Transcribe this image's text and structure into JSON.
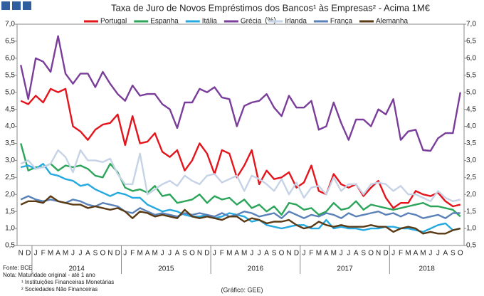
{
  "chart_data": {
    "type": "line",
    "title": "Taxa de Juro de Novos Empréstimos dos Bancos¹ às Empresas² - Acima 1M€",
    "unit": "(%)",
    "categories": [
      "N",
      "D",
      "J",
      "F",
      "M",
      "A",
      "M",
      "J",
      "J",
      "A",
      "S",
      "O",
      "N",
      "D",
      "J",
      "F",
      "M",
      "A",
      "M",
      "J",
      "J",
      "A",
      "S",
      "O",
      "N",
      "D",
      "J",
      "F",
      "M",
      "A",
      "M",
      "J",
      "J",
      "A",
      "S",
      "O",
      "N",
      "D",
      "J",
      "F",
      "M",
      "A",
      "M",
      "J",
      "J",
      "A",
      "S",
      "O",
      "N",
      "D",
      "J",
      "F",
      "M",
      "A",
      "M",
      "J",
      "J",
      "A",
      "S",
      "O"
    ],
    "years": [
      "2014",
      "2015",
      "2016",
      "2017",
      "2018"
    ],
    "ylim": [
      0.5,
      7.0
    ],
    "yticks": [
      {
        "value": 0.5,
        "label": "0,5"
      },
      {
        "value": 1.0,
        "label": "1,0"
      },
      {
        "value": 1.5,
        "label": "1,5"
      },
      {
        "value": 2.0,
        "label": "2,0"
      },
      {
        "value": 2.5,
        "label": "2,5"
      },
      {
        "value": 3.0,
        "label": "3,0"
      },
      {
        "value": 3.5,
        "label": "3,5"
      },
      {
        "value": 4.0,
        "label": "4,0"
      },
      {
        "value": 4.5,
        "label": "4,5"
      },
      {
        "value": 5.0,
        "label": "5,0"
      },
      {
        "value": 5.5,
        "label": "5,5"
      },
      {
        "value": 6.0,
        "label": "6,0"
      },
      {
        "value": 6.5,
        "label": "6,5"
      },
      {
        "value": 7.0,
        "label": "7,0"
      }
    ],
    "series": [
      {
        "name": "Portugal",
        "color": "#e3141b",
        "values": [
          4.75,
          4.65,
          4.9,
          4.7,
          5.1,
          5.0,
          5.1,
          4.0,
          3.85,
          3.6,
          3.9,
          4.05,
          4.1,
          4.35,
          3.45,
          4.3,
          3.5,
          3.55,
          3.8,
          3.25,
          3.1,
          3.3,
          2.7,
          3.0,
          3.5,
          3.2,
          2.6,
          3.3,
          3.2,
          2.5,
          2.85,
          3.3,
          2.3,
          2.7,
          2.45,
          2.5,
          2.65,
          2.2,
          2.35,
          2.85,
          2.1,
          2.0,
          2.6,
          2.3,
          2.2,
          2.3,
          1.95,
          2.2,
          2.4,
          1.9,
          1.6,
          1.75,
          1.75,
          2.1,
          2.0,
          1.95,
          2.05,
          1.8,
          1.65,
          1.7
        ]
      },
      {
        "name": "Espanha",
        "color": "#2ca55a",
        "values": [
          3.5,
          2.7,
          2.8,
          2.8,
          2.9,
          2.7,
          2.85,
          2.8,
          2.85,
          2.75,
          2.55,
          2.5,
          2.9,
          2.65,
          2.2,
          2.1,
          2.15,
          2.05,
          2.25,
          1.95,
          2.0,
          1.75,
          1.8,
          1.85,
          2.0,
          1.75,
          1.95,
          1.85,
          1.9,
          1.7,
          1.85,
          1.6,
          1.7,
          1.5,
          1.65,
          1.4,
          1.75,
          1.7,
          1.55,
          1.6,
          1.4,
          1.5,
          1.75,
          1.55,
          1.6,
          1.8,
          1.55,
          1.7,
          1.65,
          1.6,
          1.55,
          1.6,
          1.65,
          1.7,
          1.75,
          1.65,
          1.65,
          1.6,
          1.55,
          1.35
        ]
      },
      {
        "name": "Itália",
        "color": "#26a9e0",
        "values": [
          2.8,
          2.85,
          2.75,
          2.9,
          2.6,
          2.55,
          2.45,
          2.4,
          2.25,
          2.3,
          2.15,
          2.05,
          1.95,
          2.05,
          2.0,
          1.9,
          1.9,
          1.7,
          1.6,
          1.5,
          1.55,
          1.5,
          1.4,
          1.35,
          1.35,
          1.4,
          1.3,
          1.35,
          1.45,
          1.4,
          1.35,
          1.2,
          1.25,
          1.1,
          1.05,
          1.0,
          1.05,
          1.1,
          1.1,
          1.0,
          1.0,
          1.25,
          1.0,
          1.05,
          1.0,
          1.0,
          0.95,
          1.0,
          1.0,
          1.05,
          1.05,
          1.0,
          1.0,
          0.95,
          0.9,
          1.0,
          1.1,
          1.15,
          0.95,
          1.0
        ]
      },
      {
        "name": "Grécia",
        "color": "#7a3d9a",
        "values": [
          5.8,
          4.8,
          6.0,
          5.9,
          5.6,
          6.65,
          5.55,
          5.25,
          5.55,
          5.55,
          5.15,
          5.6,
          5.25,
          4.95,
          4.75,
          5.2,
          4.9,
          4.95,
          4.95,
          4.65,
          4.5,
          3.95,
          4.7,
          4.7,
          5.1,
          5.0,
          5.15,
          4.85,
          4.8,
          4.0,
          4.6,
          4.7,
          4.75,
          4.95,
          4.55,
          4.3,
          4.9,
          4.55,
          4.55,
          4.75,
          3.9,
          4.0,
          4.7,
          4.1,
          3.6,
          4.2,
          4.2,
          4.0,
          4.5,
          4.35,
          4.8,
          3.6,
          3.85,
          3.9,
          3.3,
          3.28,
          3.65,
          3.8,
          3.8,
          5.0
        ]
      },
      {
        "name": "Irlanda",
        "color": "#c6d3e6",
        "values": [
          2.9,
          3.0,
          2.75,
          2.8,
          2.9,
          3.3,
          3.1,
          2.65,
          3.3,
          3.0,
          3.0,
          2.95,
          3.05,
          2.6,
          2.3,
          2.3,
          3.2,
          2.0,
          2.15,
          2.3,
          2.4,
          2.25,
          2.55,
          2.4,
          2.3,
          2.55,
          2.6,
          2.35,
          2.45,
          2.55,
          2.1,
          2.55,
          2.45,
          2.3,
          2.1,
          2.45,
          2.0,
          2.35,
          1.9,
          2.2,
          2.25,
          2.0,
          2.5,
          2.1,
          2.3,
          2.3,
          2.0,
          2.3,
          2.35,
          2.3,
          2.1,
          2.25,
          2.0,
          2.0,
          1.9,
          1.8,
          2.1,
          1.9,
          1.8,
          1.85
        ]
      },
      {
        "name": "França",
        "color": "#5b82b8",
        "values": [
          1.85,
          1.95,
          1.85,
          1.8,
          1.85,
          1.8,
          1.75,
          1.85,
          1.8,
          1.7,
          1.65,
          1.75,
          1.7,
          1.65,
          1.5,
          1.45,
          1.6,
          1.5,
          1.4,
          1.45,
          1.4,
          1.35,
          1.45,
          1.4,
          1.45,
          1.4,
          1.35,
          1.45,
          1.35,
          1.4,
          1.5,
          1.45,
          1.35,
          1.4,
          1.45,
          1.3,
          1.5,
          1.4,
          1.3,
          1.4,
          1.35,
          1.45,
          1.4,
          1.3,
          1.45,
          1.35,
          1.4,
          1.45,
          1.5,
          1.4,
          1.45,
          1.35,
          1.45,
          1.4,
          1.3,
          1.35,
          1.4,
          1.3,
          1.45,
          1.45
        ]
      },
      {
        "name": "Alemanha",
        "color": "#5a3a14",
        "values": [
          1.7,
          1.8,
          1.8,
          1.75,
          1.95,
          1.8,
          1.75,
          1.7,
          1.7,
          1.6,
          1.65,
          1.6,
          1.55,
          1.6,
          1.5,
          1.3,
          1.5,
          1.45,
          1.35,
          1.4,
          1.35,
          1.3,
          1.55,
          1.35,
          1.3,
          1.35,
          1.3,
          1.25,
          1.35,
          1.35,
          1.2,
          1.3,
          1.25,
          1.15,
          1.2,
          1.2,
          1.25,
          1.1,
          1.0,
          1.05,
          1.2,
          1.1,
          1.05,
          1.1,
          1.05,
          1.05,
          1.05,
          1.1,
          1.05,
          1.05,
          0.9,
          1.0,
          1.05,
          1.0,
          0.85,
          0.9,
          0.85,
          0.85,
          0.95,
          1.0
        ]
      }
    ],
    "notes": [
      "Fonte: BCE",
      "Nota: Maturidade original - até 1 ano",
      "¹ Instituições Financeiras Monetárias",
      "² Sociedades Não Financeiras"
    ],
    "credit": "(Gráfico: GEE)"
  }
}
